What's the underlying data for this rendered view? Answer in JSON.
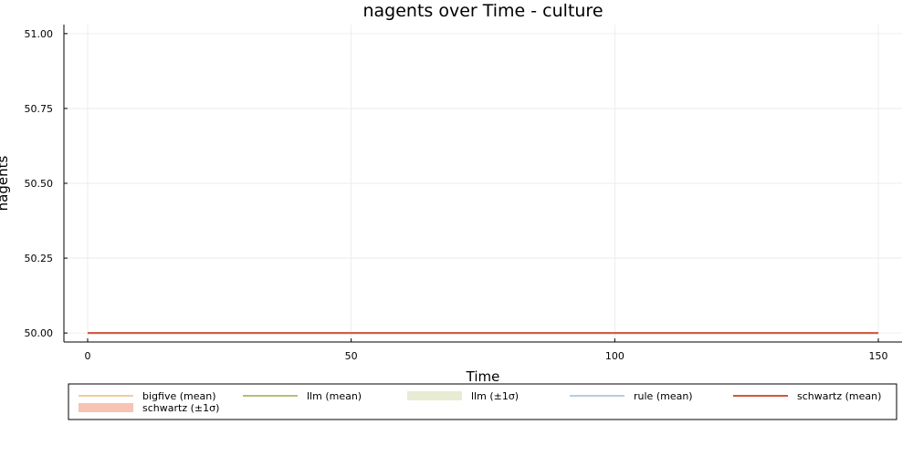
{
  "chart_data": {
    "type": "line",
    "title": "nagents over Time - culture",
    "xlabel": "Time",
    "ylabel": "nagents",
    "xlim": [
      -4.5,
      154.5
    ],
    "ylim": [
      49.97,
      51.03
    ],
    "xticks": [
      0,
      50,
      100,
      150
    ],
    "xtick_labels": [
      "0",
      "50",
      "100",
      "150"
    ],
    "yticks": [
      50.0,
      50.25,
      50.5,
      50.75,
      51.0
    ],
    "ytick_labels": [
      "50.00",
      "50.25",
      "50.50",
      "50.75",
      "51.00"
    ],
    "grid": true,
    "legend_position": "bottom",
    "x": [
      0,
      150
    ],
    "series": [
      {
        "name": "bigfive (mean)",
        "kind": "line",
        "color": "#f2cba3",
        "values": [
          50,
          50
        ]
      },
      {
        "name": "llm (mean)",
        "kind": "line",
        "color": "#b5be7c",
        "values": [
          50,
          50
        ]
      },
      {
        "name": "llm (±1σ)",
        "kind": "band",
        "color": "#e8ecd3",
        "lower": [
          50,
          50
        ],
        "upper": [
          50,
          50
        ]
      },
      {
        "name": "rule (mean)",
        "kind": "line",
        "color": "#b9cde3",
        "values": [
          50,
          50
        ]
      },
      {
        "name": "schwartz (mean)",
        "kind": "line",
        "color": "#d9533c",
        "values": [
          50,
          50
        ]
      },
      {
        "name": "schwartz (±1σ)",
        "kind": "band",
        "color": "#f6c3b5",
        "lower": [
          50,
          50
        ],
        "upper": [
          50,
          50
        ]
      }
    ]
  }
}
